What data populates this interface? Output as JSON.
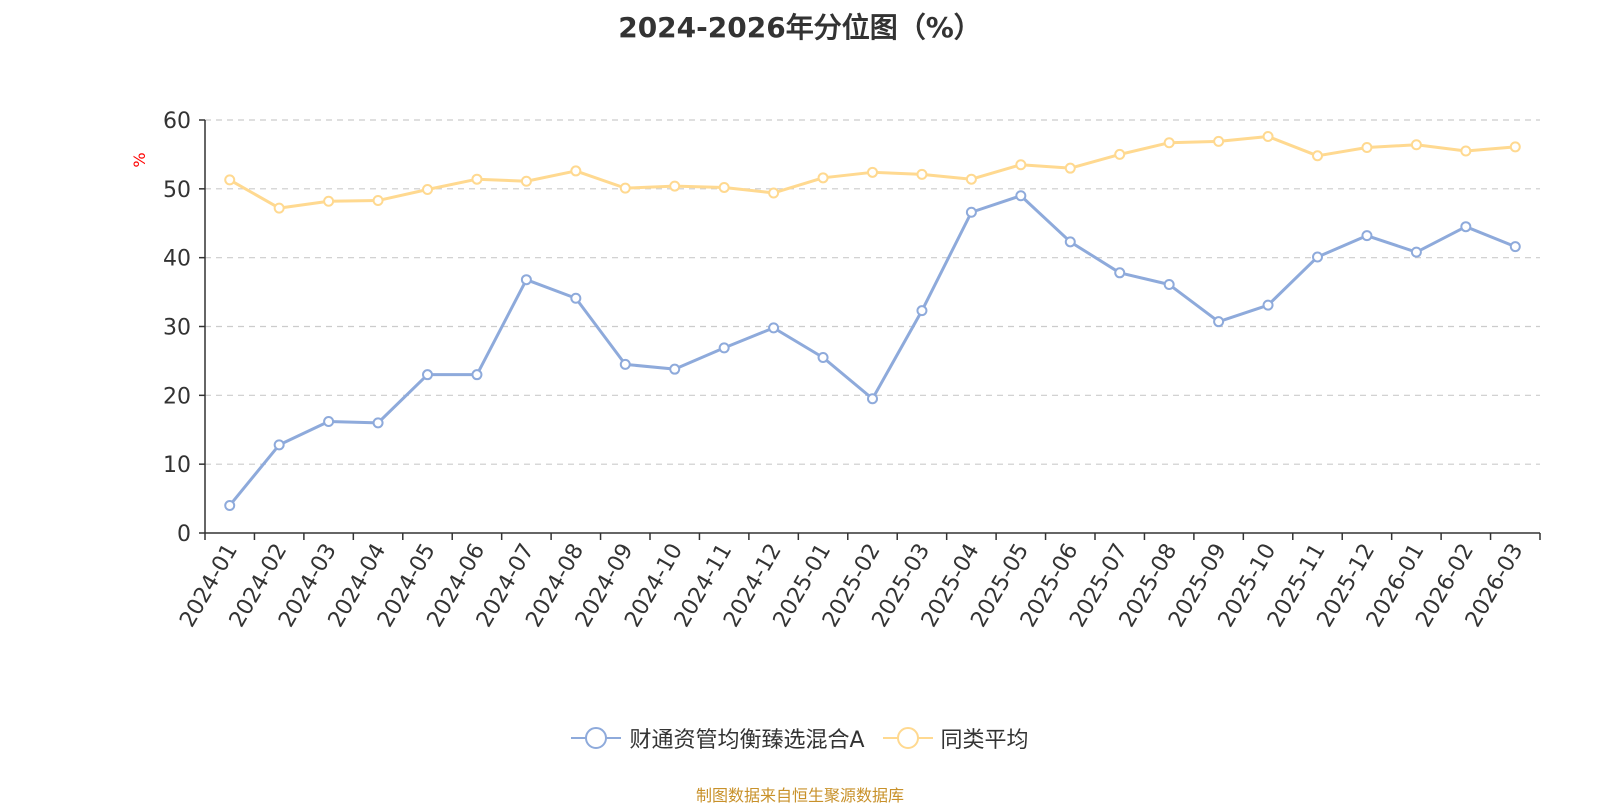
{
  "chart_data": {
    "type": "line",
    "title": "2024-2026年分位图（%）",
    "ylabel": "%",
    "xlabel": "",
    "ylim": [
      0,
      60
    ],
    "yticks": [
      0,
      10,
      20,
      30,
      40,
      50,
      60
    ],
    "grid": true,
    "legend_position": "bottom",
    "categories": [
      "2024-01",
      "2024-02",
      "2024-03",
      "2024-04",
      "2024-05",
      "2024-06",
      "2024-07",
      "2024-08",
      "2024-09",
      "2024-10",
      "2024-11",
      "2024-12",
      "2025-01",
      "2025-02",
      "2025-03",
      "2025-04",
      "2025-05",
      "2025-06",
      "2025-07",
      "2025-08",
      "2025-09",
      "2025-10",
      "2025-11",
      "2025-12",
      "2026-01",
      "2026-02",
      "2026-03"
    ],
    "series": [
      {
        "name": "财通资管均衡臻选混合A",
        "color": "#8eaadb",
        "values": [
          4.0,
          12.8,
          16.2,
          16.0,
          23.0,
          23.0,
          36.8,
          34.1,
          24.5,
          23.8,
          26.9,
          29.8,
          25.5,
          19.5,
          32.3,
          46.6,
          49.0,
          42.3,
          37.8,
          36.1,
          30.7,
          33.1,
          40.1,
          43.2,
          40.8,
          44.5,
          41.6
        ]
      },
      {
        "name": "同类平均",
        "color": "#ffd990",
        "values": [
          51.3,
          47.2,
          48.2,
          48.3,
          49.9,
          51.4,
          51.1,
          52.6,
          50.1,
          50.4,
          50.2,
          49.4,
          51.6,
          52.4,
          52.1,
          51.4,
          53.5,
          53.0,
          55.0,
          56.7,
          56.9,
          57.6,
          54.8,
          56.0,
          56.4,
          55.5,
          56.1
        ]
      }
    ]
  },
  "source": "制图数据来自恒生聚源数据库"
}
